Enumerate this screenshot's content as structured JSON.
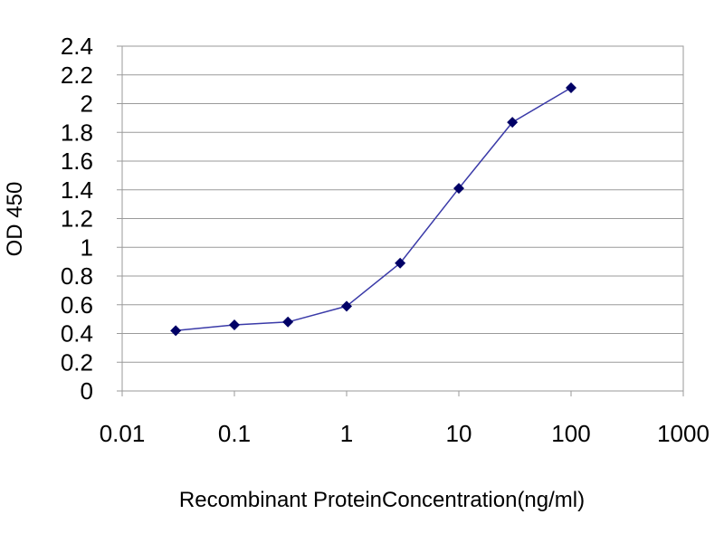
{
  "chart_data": {
    "type": "line",
    "title": "",
    "xlabel": "Recombinant ProteinConcentration(ng/ml)",
    "ylabel": "OD 450",
    "x_scale": "log",
    "xlim": [
      0.01,
      1000
    ],
    "ylim": [
      0,
      2.4
    ],
    "x_ticks": [
      "0.01",
      "0.1",
      "1",
      "10",
      "100",
      "1000"
    ],
    "y_ticks": [
      "0",
      "0.2",
      "0.4",
      "0.6",
      "0.8",
      "1",
      "1.2",
      "1.4",
      "1.6",
      "1.8",
      "2",
      "2.2",
      "2.4"
    ],
    "grid": "horizontal",
    "series": [
      {
        "x": [
          0.03,
          0.1,
          0.3,
          1,
          3,
          10,
          30,
          100
        ],
        "y": [
          0.42,
          0.46,
          0.48,
          0.59,
          0.89,
          1.41,
          1.87,
          2.11
        ]
      }
    ],
    "colors": {
      "line": "#3a3aa8",
      "marker": "#000066",
      "grid": "#9a9a9a",
      "axis": "#9a9a9a"
    }
  }
}
